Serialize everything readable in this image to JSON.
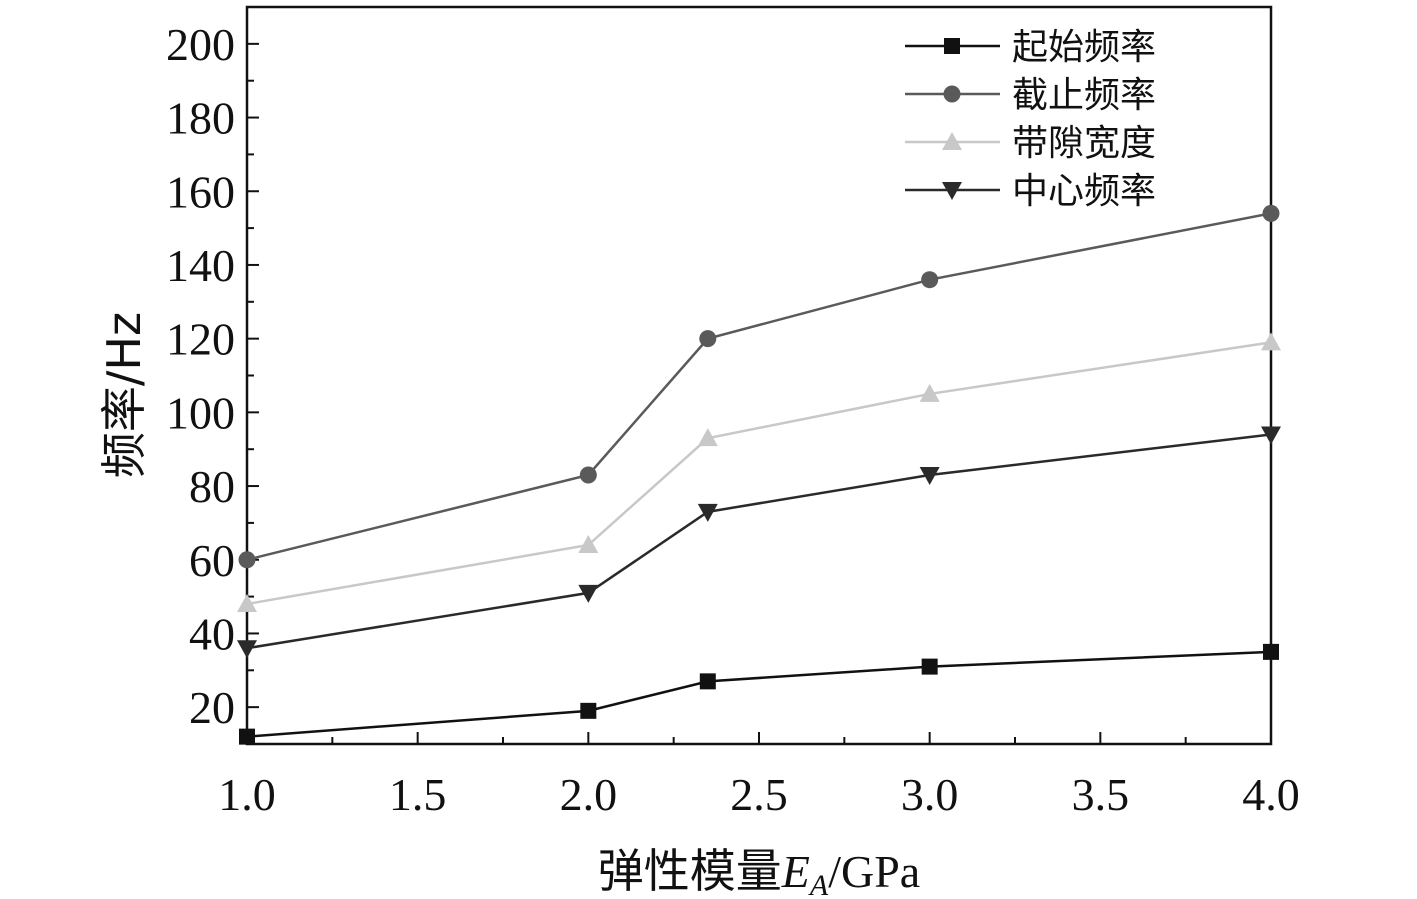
{
  "chart_data": {
    "type": "line",
    "x_label_prefix": "弹性模量",
    "x_label_var": "E",
    "x_label_sub": "A",
    "x_label_suffix": "/GPa",
    "y_label": "频率/Hz",
    "xlim": [
      1.0,
      4.0
    ],
    "ylim": [
      10,
      210
    ],
    "x_ticks": [
      1.0,
      1.5,
      2.0,
      2.5,
      3.0,
      3.5,
      4.0
    ],
    "x_tick_labels": [
      "1.0",
      "1.5",
      "2.0",
      "2.5",
      "3.0",
      "3.5",
      "4.0"
    ],
    "y_ticks": [
      20,
      40,
      60,
      80,
      100,
      120,
      140,
      160,
      180,
      200
    ],
    "y_tick_labels": [
      "20",
      "40",
      "60",
      "80",
      "100",
      "120",
      "140",
      "160",
      "180",
      "200"
    ],
    "x": [
      1.0,
      2.0,
      2.35,
      3.0,
      4.0
    ],
    "series": [
      {
        "name": "起始频率",
        "marker": "square",
        "color": "#111111",
        "values": [
          12,
          19,
          27,
          31,
          35
        ]
      },
      {
        "name": "截止频率",
        "marker": "circle",
        "color": "#5a5a5a",
        "values": [
          60,
          83,
          120,
          136,
          154
        ]
      },
      {
        "name": "带隙宽度",
        "marker": "triangle-up",
        "color": "#c8c8c8",
        "values": [
          48,
          64,
          93,
          105,
          119
        ]
      },
      {
        "name": "中心频率",
        "marker": "triangle-down",
        "color": "#2a2a2a",
        "values": [
          36,
          51,
          73,
          83,
          94
        ]
      }
    ],
    "legend_position": "top-right",
    "grid": false
  }
}
